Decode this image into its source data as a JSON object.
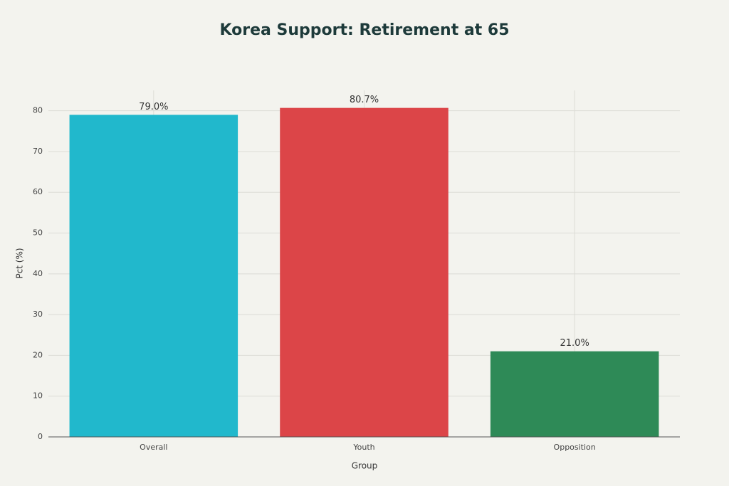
{
  "chart_data": {
    "type": "bar",
    "title": "Korea Support: Retirement at 65",
    "x_label": "Group",
    "y_label": "Pct (%)",
    "categories": [
      "Overall",
      "Youth",
      "Opposition"
    ],
    "values": [
      79.0,
      80.7,
      21.0
    ],
    "value_labels": [
      "79.0%",
      "80.7%",
      "21.0%"
    ],
    "colors": [
      "#21b8cc",
      "#dc4548",
      "#2e8a57"
    ],
    "ylim": [
      0,
      85
    ],
    "yticks": [
      0,
      10,
      20,
      30,
      40,
      50,
      60,
      70,
      80
    ],
    "grid": true
  }
}
